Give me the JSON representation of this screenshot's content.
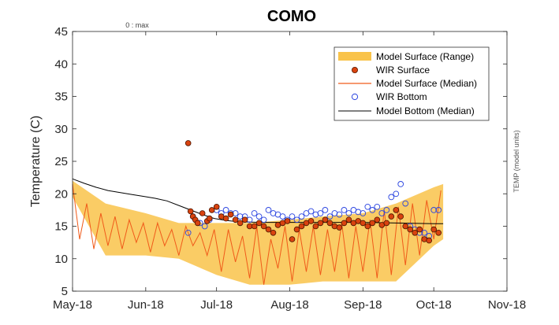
{
  "chart_data": {
    "type": "line",
    "title": "COMO",
    "ylabel": "Temperature (C)",
    "right_label": "TEMP (model units)",
    "top_note": "0 : max",
    "ylim": [
      5,
      45
    ],
    "yticks": [
      5,
      10,
      15,
      20,
      25,
      30,
      35,
      40,
      45
    ],
    "xlim": [
      "2018-05-01",
      "2018-11-01"
    ],
    "xticks": [
      {
        "date": "2018-05-01",
        "label": "May-18"
      },
      {
        "date": "2018-06-01",
        "label": "Jun-18"
      },
      {
        "date": "2018-07-01",
        "label": "Jul-18"
      },
      {
        "date": "2018-08-01",
        "label": "Aug-18"
      },
      {
        "date": "2018-09-01",
        "label": "Sep-18"
      },
      {
        "date": "2018-10-01",
        "label": "Oct-18"
      },
      {
        "date": "2018-11-01",
        "label": "Nov-18"
      }
    ],
    "grid": false,
    "legend_position": "top-right",
    "colors": {
      "range_fill": "#f9c34a",
      "wir_surface_fill": "#d9430f",
      "model_surface_median": "#f05a1a",
      "wir_bottom": "#2b45e0",
      "model_bottom": "#000000"
    },
    "legend": [
      "Model Surface (Range)",
      "WIR Surface",
      "Model Surface (Median)",
      "WIR Bottom",
      "Model Bottom (Median)"
    ],
    "series": [
      {
        "name": "Model Bottom (Median)",
        "kind": "line",
        "x": [
          "2018-05-01",
          "2018-05-06",
          "2018-05-11",
          "2018-05-16",
          "2018-05-21",
          "2018-05-26",
          "2018-05-31",
          "2018-06-05",
          "2018-06-10",
          "2018-06-15",
          "2018-06-20",
          "2018-06-25",
          "2018-06-30",
          "2018-07-05",
          "2018-07-10",
          "2018-07-20",
          "2018-08-01",
          "2018-08-15",
          "2018-09-01",
          "2018-09-15",
          "2018-10-01",
          "2018-10-05"
        ],
        "y": [
          22.3,
          21.6,
          21.0,
          20.5,
          20.2,
          19.9,
          19.6,
          19.3,
          18.9,
          18.2,
          17.5,
          16.8,
          16.2,
          15.9,
          15.7,
          15.6,
          15.6,
          15.6,
          15.6,
          15.5,
          15.4,
          15.4
        ]
      },
      {
        "name": "Model Surface (Median)",
        "kind": "line",
        "x": [
          "2018-05-01",
          "2018-05-04",
          "2018-05-07",
          "2018-05-10",
          "2018-05-13",
          "2018-05-16",
          "2018-05-19",
          "2018-05-22",
          "2018-05-25",
          "2018-05-28",
          "2018-05-31",
          "2018-06-03",
          "2018-06-06",
          "2018-06-09",
          "2018-06-12",
          "2018-06-15",
          "2018-06-18",
          "2018-06-21",
          "2018-06-24",
          "2018-06-27",
          "2018-06-30",
          "2018-07-03",
          "2018-07-06",
          "2018-07-09",
          "2018-07-12",
          "2018-07-15",
          "2018-07-18",
          "2018-07-21",
          "2018-07-24",
          "2018-07-27",
          "2018-07-30",
          "2018-08-02",
          "2018-08-05",
          "2018-08-08",
          "2018-08-11",
          "2018-08-14",
          "2018-08-17",
          "2018-08-20",
          "2018-08-23",
          "2018-08-26",
          "2018-08-29",
          "2018-09-01",
          "2018-09-04",
          "2018-09-07",
          "2018-09-10",
          "2018-09-13",
          "2018-09-16",
          "2018-09-19",
          "2018-09-22",
          "2018-09-25",
          "2018-09-28",
          "2018-10-01",
          "2018-10-04"
        ],
        "y": [
          21.5,
          13.0,
          18.5,
          11.5,
          17.0,
          12.0,
          16.5,
          11.5,
          16.0,
          12.5,
          15.5,
          11.0,
          15.5,
          12.0,
          14.5,
          10.5,
          15.0,
          12.0,
          14.0,
          10.5,
          14.5,
          8.0,
          14.5,
          9.5,
          13.5,
          7.0,
          15.0,
          6.0,
          13.0,
          8.5,
          15.0,
          6.5,
          14.5,
          8.0,
          15.0,
          7.5,
          14.5,
          8.0,
          15.5,
          7.0,
          15.0,
          8.0,
          16.0,
          7.0,
          17.5,
          7.5,
          18.0,
          9.0,
          18.5,
          10.5,
          19.0,
          13.0,
          20.5
        ]
      },
      {
        "name": "Model Surface (Range)",
        "kind": "band",
        "x": [
          "2018-05-01",
          "2018-05-15",
          "2018-06-01",
          "2018-06-15",
          "2018-07-01",
          "2018-07-15",
          "2018-08-01",
          "2018-08-15",
          "2018-09-01",
          "2018-09-15",
          "2018-10-01",
          "2018-10-05"
        ],
        "low": [
          19.5,
          10.5,
          10.5,
          10.0,
          7.5,
          6.0,
          6.0,
          6.5,
          6.5,
          6.5,
          12.0,
          13.0
        ],
        "high": [
          22.0,
          18.5,
          17.0,
          15.5,
          15.5,
          15.5,
          16.0,
          16.5,
          17.0,
          18.5,
          21.0,
          21.5
        ]
      },
      {
        "name": "WIR Surface",
        "kind": "scatter",
        "x": [
          "2018-06-19",
          "2018-06-20",
          "2018-06-21",
          "2018-06-22",
          "2018-06-23",
          "2018-06-25",
          "2018-06-27",
          "2018-06-28",
          "2018-06-29",
          "2018-07-01",
          "2018-07-03",
          "2018-07-05",
          "2018-07-07",
          "2018-07-09",
          "2018-07-11",
          "2018-07-13",
          "2018-07-15",
          "2018-07-17",
          "2018-07-19",
          "2018-07-21",
          "2018-07-23",
          "2018-07-25",
          "2018-07-27",
          "2018-07-29",
          "2018-07-31",
          "2018-08-02",
          "2018-08-04",
          "2018-08-06",
          "2018-08-08",
          "2018-08-10",
          "2018-08-12",
          "2018-08-14",
          "2018-08-16",
          "2018-08-18",
          "2018-08-20",
          "2018-08-22",
          "2018-08-24",
          "2018-08-26",
          "2018-08-28",
          "2018-08-30",
          "2018-09-01",
          "2018-09-03",
          "2018-09-05",
          "2018-09-07",
          "2018-09-09",
          "2018-09-11",
          "2018-09-13",
          "2018-09-15",
          "2018-09-17",
          "2018-09-19",
          "2018-09-21",
          "2018-09-23",
          "2018-09-25",
          "2018-09-27",
          "2018-09-29",
          "2018-10-01",
          "2018-10-03"
        ],
        "y": [
          27.8,
          17.3,
          16.5,
          16.0,
          15.5,
          17.0,
          15.8,
          16.2,
          17.5,
          18.0,
          16.5,
          16.2,
          16.8,
          16.0,
          15.5,
          16.0,
          15.0,
          15.0,
          15.5,
          15.0,
          14.5,
          14.0,
          15.2,
          15.5,
          15.8,
          13.0,
          14.5,
          15.0,
          15.5,
          15.8,
          15.0,
          15.5,
          16.0,
          15.5,
          15.0,
          14.8,
          15.5,
          16.0,
          15.5,
          15.8,
          15.5,
          15.0,
          15.5,
          16.0,
          15.2,
          15.5,
          16.5,
          17.5,
          16.5,
          15.0,
          14.5,
          14.0,
          14.5,
          13.0,
          12.8,
          14.5,
          14.0
        ]
      },
      {
        "name": "WIR Bottom",
        "kind": "scatter",
        "x": [
          "2018-06-19",
          "2018-06-21",
          "2018-06-24",
          "2018-06-26",
          "2018-06-28",
          "2018-07-01",
          "2018-07-03",
          "2018-07-05",
          "2018-07-07",
          "2018-07-09",
          "2018-07-11",
          "2018-07-13",
          "2018-07-15",
          "2018-07-17",
          "2018-07-19",
          "2018-07-21",
          "2018-07-23",
          "2018-07-25",
          "2018-07-27",
          "2018-07-29",
          "2018-07-31",
          "2018-08-02",
          "2018-08-04",
          "2018-08-06",
          "2018-08-08",
          "2018-08-10",
          "2018-08-12",
          "2018-08-14",
          "2018-08-16",
          "2018-08-18",
          "2018-08-20",
          "2018-08-22",
          "2018-08-24",
          "2018-08-26",
          "2018-08-28",
          "2018-08-30",
          "2018-09-01",
          "2018-09-03",
          "2018-09-05",
          "2018-09-07",
          "2018-09-09",
          "2018-09-11",
          "2018-09-13",
          "2018-09-15",
          "2018-09-17",
          "2018-09-19",
          "2018-09-21",
          "2018-09-23",
          "2018-09-25",
          "2018-09-27",
          "2018-09-29",
          "2018-10-01",
          "2018-10-03"
        ],
        "y": [
          14.0,
          16.5,
          15.5,
          15.0,
          16.0,
          17.5,
          17.0,
          17.5,
          17.0,
          17.0,
          16.5,
          16.5,
          16.0,
          17.0,
          16.5,
          16.0,
          17.5,
          17.0,
          16.8,
          16.5,
          16.0,
          16.5,
          16.0,
          16.5,
          17.0,
          17.3,
          16.8,
          17.0,
          17.5,
          16.5,
          17.0,
          16.8,
          17.5,
          17.0,
          17.5,
          17.2,
          17.0,
          18.0,
          17.5,
          18.0,
          17.0,
          17.5,
          19.5,
          20.0,
          21.5,
          18.5,
          15.0,
          14.5,
          14.0,
          14.0,
          13.5,
          17.5,
          17.5
        ]
      }
    ]
  }
}
